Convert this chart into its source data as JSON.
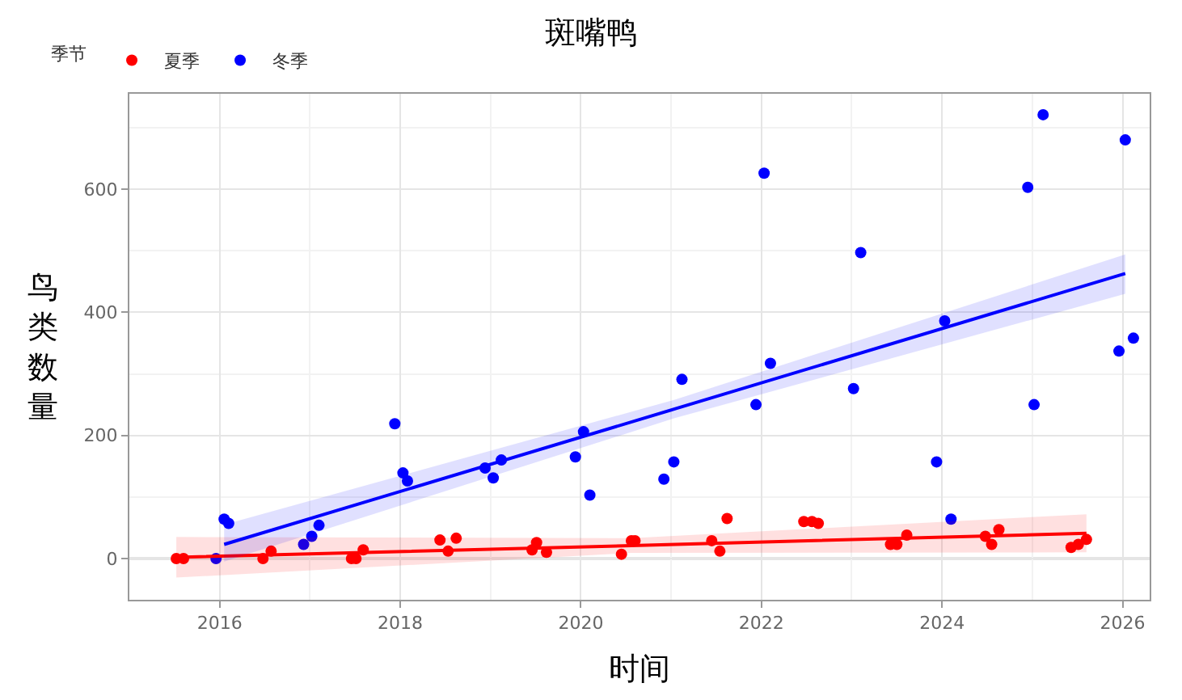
{
  "chart_data": {
    "type": "scatter",
    "title": "斑嘴鸭",
    "xlabel": "时间",
    "ylabel": "鸟类数量",
    "legend_title": "季节",
    "xlim": [
      2015.0,
      2026.3
    ],
    "xticks": [
      2016,
      2018,
      2020,
      2022,
      2024,
      2026
    ],
    "ylim": [
      -67,
      755
    ],
    "yticks": [
      0,
      200,
      400,
      600
    ],
    "grid": true,
    "legend": "top left",
    "marker": "circle",
    "ref_lines": [
      {
        "axis": "y",
        "value": 0,
        "color": "#999999"
      }
    ],
    "series": [
      {
        "name": "夏季",
        "color": "#ff0000",
        "x": [
          2015.52,
          2015.6,
          2016.48,
          2016.57,
          2017.46,
          2017.51,
          2017.59,
          2018.44,
          2018.53,
          2018.62,
          2019.46,
          2019.51,
          2019.62,
          2020.45,
          2020.56,
          2020.6,
          2021.45,
          2021.54,
          2021.62,
          2022.47,
          2022.56,
          2022.63,
          2023.43,
          2023.5,
          2023.61,
          2024.48,
          2024.55,
          2024.63,
          2025.43,
          2025.51,
          2025.6
        ],
        "values": [
          0,
          0,
          0,
          12,
          0,
          0,
          14,
          30,
          12,
          33,
          14,
          26,
          10,
          7,
          29,
          29,
          29,
          12,
          65,
          60,
          60,
          57,
          23,
          23,
          38,
          36,
          23,
          47,
          18,
          23,
          31
        ]
      },
      {
        "name": "冬季",
        "color": "#0000ff",
        "x": [
          2015.96,
          2016.05,
          2016.1,
          2016.93,
          2017.02,
          2017.1,
          2017.94,
          2018.03,
          2018.08,
          2018.94,
          2019.03,
          2019.12,
          2019.94,
          2020.03,
          2020.1,
          2020.92,
          2021.03,
          2021.12,
          2021.94,
          2022.03,
          2022.1,
          2023.02,
          2023.1,
          2023.94,
          2024.03,
          2024.1,
          2024.95,
          2025.02,
          2025.12,
          2025.96,
          2026.03,
          2026.12
        ],
        "values": [
          0,
          64,
          57,
          23,
          36,
          54,
          219,
          139,
          126,
          147,
          131,
          160,
          165,
          206,
          103,
          129,
          157,
          291,
          250,
          626,
          317,
          276,
          497,
          157,
          386,
          64,
          603,
          250,
          721,
          337,
          680,
          358
        ]
      },
      {
        "type": "line",
        "marker": "none",
        "color": "#ff0000",
        "x": [
          2015.52,
          2020.56,
          2025.6
        ],
        "values": [
          2,
          21,
          41
        ],
        "lower": [
          -31,
          9,
          10
        ],
        "upper": [
          35,
          33,
          72
        ]
      },
      {
        "type": "line",
        "marker": "none",
        "color": "#0000ff",
        "x": [
          2016.05,
          2021.04,
          2026.03
        ],
        "values": [
          23,
          243,
          463
        ],
        "lower": [
          -5,
          228,
          430
        ],
        "upper": [
          55,
          258,
          494
        ]
      }
    ]
  }
}
